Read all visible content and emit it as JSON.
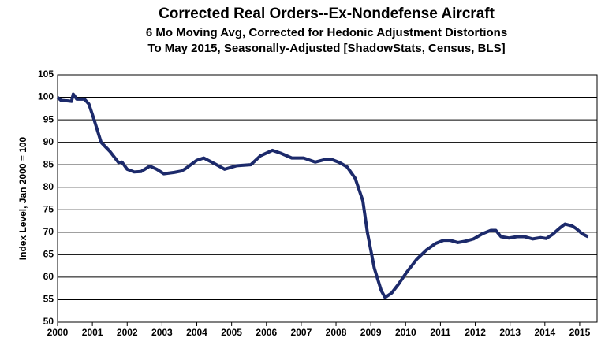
{
  "chart_data": {
    "type": "line",
    "title": "Corrected Real Orders--Ex-Nondefense Aircraft",
    "subtitle": "6 Mo Moving Avg, Corrected for Hedonic Adjustment Distortions",
    "subtitle2": "To May 2015, Seasonally-Adjusted [ShadowStats, Census, BLS]",
    "y_label": "Index Level, Jan 2000 = 100",
    "xlim": [
      2000,
      2015.5
    ],
    "xticks": [
      2000,
      2001,
      2002,
      2003,
      2004,
      2005,
      2006,
      2007,
      2008,
      2009,
      2010,
      2011,
      2012,
      2013,
      2014,
      2015
    ],
    "ylim": [
      50,
      105
    ],
    "yticks": [
      50,
      55,
      60,
      65,
      70,
      75,
      80,
      85,
      90,
      95,
      100,
      105
    ],
    "grid": true,
    "series": [
      {
        "color": "#1c2a6b",
        "x": [
          2000.0,
          2000.1,
          2000.3,
          2000.4,
          2000.45,
          2000.55,
          2000.77,
          2000.9,
          2001.05,
          2001.25,
          2001.5,
          2001.75,
          2001.85,
          2002.0,
          2002.2,
          2002.4,
          2002.65,
          2002.85,
          2003.05,
          2003.35,
          2003.55,
          2003.65,
          2004.0,
          2004.2,
          2004.5,
          2004.8,
          2005.15,
          2005.55,
          2005.83,
          2006.17,
          2006.4,
          2006.73,
          2007.07,
          2007.4,
          2007.65,
          2007.87,
          2008.1,
          2008.32,
          2008.55,
          2008.77,
          2008.9,
          2009.1,
          2009.3,
          2009.41,
          2009.6,
          2009.8,
          2010.02,
          2010.32,
          2010.59,
          2010.86,
          2011.09,
          2011.27,
          2011.5,
          2011.72,
          2011.95,
          2012.22,
          2012.45,
          2012.59,
          2012.74,
          2012.97,
          2013.2,
          2013.42,
          2013.65,
          2013.88,
          2014.04,
          2014.22,
          2014.44,
          2014.58,
          2014.78,
          2014.9,
          2015.08,
          2015.24
        ],
        "values": [
          100,
          99.3,
          99.2,
          99.1,
          100.7,
          99.6,
          99.6,
          98.5,
          95,
          90,
          88,
          85.5,
          85.6,
          84,
          83.4,
          83.5,
          84.7,
          84,
          83,
          83.3,
          83.6,
          84,
          86,
          86.5,
          85.3,
          84,
          84.8,
          85,
          87,
          88.2,
          87.6,
          86.5,
          86.5,
          85.6,
          86.1,
          86.2,
          85.5,
          84.5,
          82,
          77,
          70,
          62,
          57,
          55.5,
          56.5,
          58.5,
          61,
          64,
          66,
          67.5,
          68.2,
          68.2,
          67.7,
          68,
          68.5,
          69.7,
          70.4,
          70.4,
          69,
          68.7,
          69,
          69,
          68.5,
          68.8,
          68.6,
          69.5,
          71,
          71.8,
          71.4,
          70.8,
          69.6,
          69
        ]
      }
    ]
  }
}
